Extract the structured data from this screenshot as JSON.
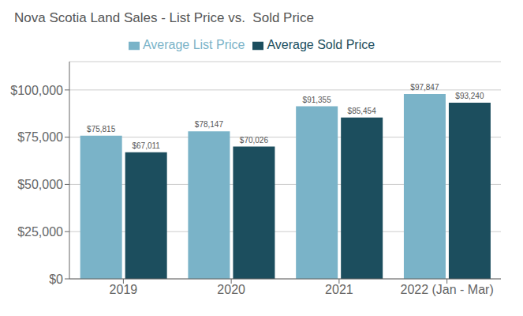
{
  "chart_data": {
    "type": "bar",
    "title": "Nova Scotia Land Sales - List Price vs.  Sold Price",
    "categories": [
      "2019",
      "2020",
      "2021",
      "2022 (Jan - Mar)"
    ],
    "series": [
      {
        "name": "Average List Price",
        "color": "#7ab3c8",
        "values": [
          75815,
          78147,
          91355,
          97847
        ],
        "value_labels": [
          "$75,815",
          "$78,147",
          "$91,355",
          "$97,847"
        ]
      },
      {
        "name": "Average Sold Price",
        "color": "#1c4e5e",
        "values": [
          67011,
          70026,
          85454,
          93240
        ],
        "value_labels": [
          "$67,011",
          "$70,026",
          "$85,454",
          "$93,240"
        ]
      }
    ],
    "ylim": [
      0,
      115000
    ],
    "yticks": [
      {
        "value": 0,
        "label": "$0"
      },
      {
        "value": 25000,
        "label": "$25,000"
      },
      {
        "value": 50000,
        "label": "$50,000"
      },
      {
        "value": 75000,
        "label": "$75,000"
      },
      {
        "value": 100000,
        "label": "$100,000"
      }
    ],
    "grid": true,
    "legend": "top",
    "data_labels": true
  }
}
